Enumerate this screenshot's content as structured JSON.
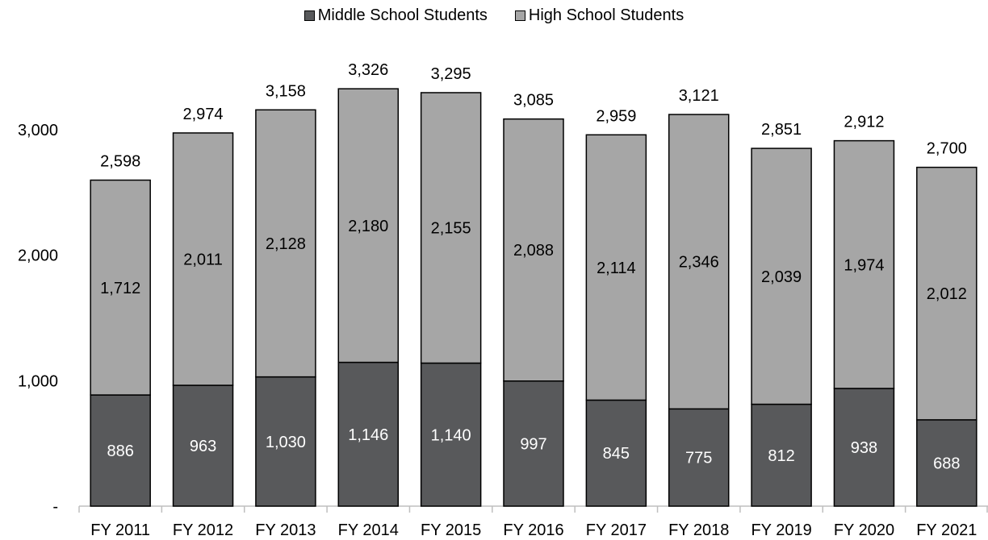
{
  "legend": {
    "middle_label": "Middle School Students",
    "high_label": "High School Students"
  },
  "colors": {
    "middle": "#58595b",
    "high": "#a6a6a6",
    "outline": "#000000",
    "axis": "#bfbfbf"
  },
  "chart_data": {
    "type": "bar",
    "stacked": true,
    "categories": [
      "FY 2011",
      "FY 2012",
      "FY 2013",
      "FY 2014",
      "FY 2015",
      "FY 2016",
      "FY 2017",
      "FY 2018",
      "FY 2019",
      "FY 2020",
      "FY 2021"
    ],
    "series": [
      {
        "name": "Middle School Students",
        "values": [
          886,
          963,
          1030,
          1146,
          1140,
          997,
          845,
          775,
          812,
          938,
          688
        ]
      },
      {
        "name": "High School Students",
        "values": [
          1712,
          2011,
          2128,
          2180,
          2155,
          2088,
          2114,
          2346,
          2039,
          1974,
          2012
        ]
      }
    ],
    "totals": [
      2598,
      2974,
      3158,
      3326,
      3295,
      3085,
      2959,
      3121,
      2851,
      2912,
      2700
    ],
    "value_labels": {
      "middle": [
        "886",
        "963",
        "1,030",
        "1,146",
        "1,140",
        "997",
        "845",
        "775",
        "812",
        "938",
        "688"
      ],
      "high": [
        "1,712",
        "2,011",
        "2,128",
        "2,180",
        "2,155",
        "2,088",
        "2,114",
        "2,346",
        "2,039",
        "1,974",
        "2,012"
      ],
      "totals": [
        "2,598",
        "2,974",
        "3,158",
        "3,326",
        "3,295",
        "3,085",
        "2,959",
        "3,121",
        "2,851",
        "2,912",
        "2,700"
      ]
    },
    "yticks": [
      0,
      1000,
      2000,
      3000
    ],
    "ytick_labels": [
      "-",
      "1,000",
      "2,000",
      "3,000"
    ],
    "ylim": [
      0,
      3600
    ],
    "grid": false,
    "legend_position": "top-center"
  }
}
